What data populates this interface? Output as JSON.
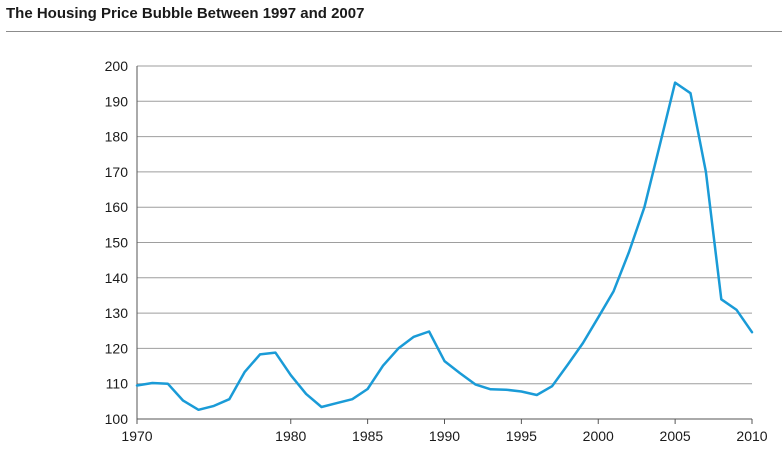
{
  "title": "The Housing Price Bubble Between 1997 and 2007",
  "chart_data": {
    "type": "line",
    "title": "The Housing Price Bubble Between 1997 and 2007",
    "xlabel": "",
    "ylabel": "",
    "xlim": [
      1970,
      2010
    ],
    "ylim": [
      100,
      200
    ],
    "grid": true,
    "x_ticks": [
      "1970",
      "1980",
      "1985",
      "1990",
      "1995",
      "2000",
      "2005",
      "2010"
    ],
    "y_ticks": [
      "100",
      "110",
      "120",
      "130",
      "140",
      "150",
      "160",
      "170",
      "180",
      "190",
      "200"
    ],
    "line_color": "#1a9bd7",
    "series": [
      {
        "x": [
          1970,
          1971,
          1972,
          1973,
          1974,
          1975,
          1976,
          1977,
          1978,
          1979,
          1980,
          1981,
          1982,
          1983,
          1984,
          1985,
          1986,
          1987,
          1988,
          1989,
          1990,
          1991,
          1992,
          1993,
          1994,
          1995,
          1996,
          1997,
          1998,
          1999,
          2000,
          2001,
          2002,
          2003,
          2004,
          2005,
          2006,
          2007,
          2008,
          2009,
          2010
        ],
        "y": [
          109.5,
          110.2,
          110.0,
          105.2,
          102.6,
          103.7,
          105.6,
          113.3,
          118.3,
          118.8,
          112.4,
          107.1,
          103.4,
          104.5,
          105.6,
          108.5,
          115.1,
          120.0,
          123.3,
          124.8,
          116.4,
          113.0,
          109.8,
          108.4,
          108.3,
          107.8,
          106.8,
          109.3,
          115.3,
          121.5,
          128.8,
          136.2,
          147.3,
          160.0,
          177.6,
          195.3,
          192.3,
          170.0,
          133.9,
          130.9,
          124.6
        ]
      }
    ]
  }
}
